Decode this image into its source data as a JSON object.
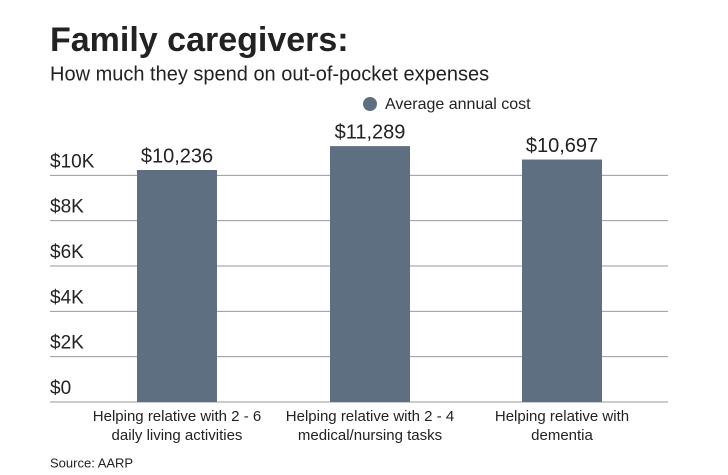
{
  "chart_data": {
    "type": "bar",
    "title": "Family caregivers:",
    "subtitle": "How much they spend on out-of-pocket expenses",
    "source": "Source: AARP",
    "categories": [
      "Helping relative with 2 - 6 daily living activities",
      "Helping relative with 2 - 4 medical/nursing tasks",
      "Helping relative with dementia"
    ],
    "series": [
      {
        "name": "Average annual cost",
        "color": "#5f6f82",
        "values": [
          10236,
          11289,
          10697
        ],
        "value_labels": [
          "$10,236",
          "$11,289",
          "$10,697"
        ]
      }
    ],
    "ylim": [
      0,
      12000
    ],
    "yticks": [
      {
        "value": 0,
        "label": "$0"
      },
      {
        "value": 2000,
        "label": "$2K"
      },
      {
        "value": 4000,
        "label": "$4K"
      },
      {
        "value": 6000,
        "label": "$6K"
      },
      {
        "value": 8000,
        "label": "$8K"
      },
      {
        "value": 10000,
        "label": "$10K"
      }
    ],
    "grid": true
  }
}
